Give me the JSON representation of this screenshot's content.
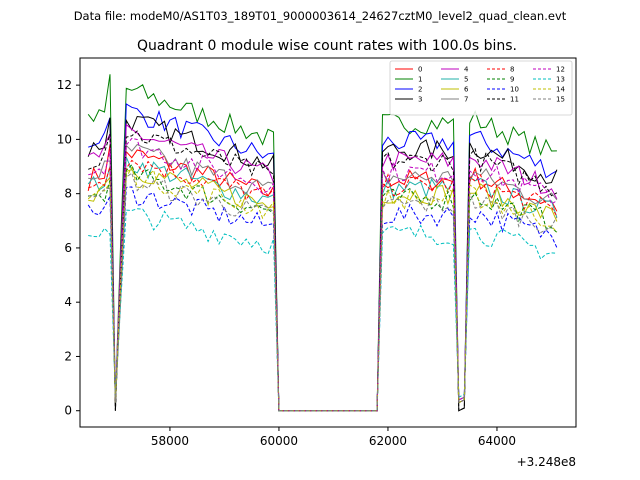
{
  "chart_data": {
    "type": "line",
    "suptitle": "Data file: modeM0/AS1T03_189T01_9000003614_24627cztM0_level2_quad_clean.evt",
    "title": "Quadrant 0 module wise count rates with 100.0s bins.",
    "xlabel": "",
    "ylabel": "",
    "x_offset_label": "+3.248e8",
    "xlim": [
      56350,
      65450
    ],
    "ylim": [
      -0.6,
      13.0
    ],
    "xticks": [
      58000,
      60000,
      62000,
      64000
    ],
    "xtick_labels": [
      "58000",
      "60000",
      "62000",
      "64000"
    ],
    "yticks": [
      0,
      2,
      4,
      6,
      8,
      10,
      12
    ],
    "ytick_labels": [
      "0",
      "2",
      "4",
      "6",
      "8",
      "10",
      "12"
    ],
    "grid": false,
    "legend_position": "top-right",
    "legend_columns": 4,
    "x_segments": [
      {
        "start": 56500,
        "end": 56900,
        "step": 100
      },
      {
        "start": 57000,
        "end": 57000,
        "step": 100
      },
      {
        "start": 57100,
        "end": 57100,
        "step": 100
      },
      {
        "start": 57200,
        "end": 59900,
        "step": 100
      },
      {
        "start": 60000,
        "end": 61800,
        "step": 100
      },
      {
        "start": 61900,
        "end": 63200,
        "step": 100
      },
      {
        "start": 63300,
        "end": 63400,
        "step": 100
      },
      {
        "start": 63500,
        "end": 65100,
        "step": 100
      }
    ],
    "series": [
      {
        "name": "0",
        "color": "#ff0000",
        "dash": "solid",
        "level": 8.5,
        "dip": 0.3,
        "rise": 9.8
      },
      {
        "name": "1",
        "color": "#008000",
        "dash": "solid",
        "level": 10.6,
        "dip": 0.3,
        "rise": 12.4
      },
      {
        "name": "2",
        "color": "#0000ff",
        "dash": "solid",
        "level": 9.9,
        "dip": 0.3,
        "rise": 10.8
      },
      {
        "name": "3",
        "color": "#000000",
        "dash": "solid",
        "level": 9.6,
        "dip": 0.0,
        "rise": 10.8
      },
      {
        "name": "4",
        "color": "#bf00bf",
        "dash": "solid",
        "level": 9.2,
        "dip": 0.4,
        "rise": 10.2
      },
      {
        "name": "5",
        "color": "#20b2aa",
        "dash": "solid",
        "level": 8.2,
        "dip": 0.4,
        "rise": 9.0
      },
      {
        "name": "6",
        "color": "#bfbf00",
        "dash": "solid",
        "level": 8.0,
        "dip": 0.3,
        "rise": 8.6
      },
      {
        "name": "7",
        "color": "#808080",
        "dash": "solid",
        "level": 8.6,
        "dip": 0.4,
        "rise": 9.2
      },
      {
        "name": "8",
        "color": "#ff0000",
        "dash": "dashed",
        "level": 8.3,
        "dip": 0.3,
        "rise": 9.0
      },
      {
        "name": "9",
        "color": "#008000",
        "dash": "dashed",
        "level": 7.8,
        "dip": 0.3,
        "rise": 8.5
      },
      {
        "name": "10",
        "color": "#0000ff",
        "dash": "dashed",
        "level": 7.2,
        "dip": 0.3,
        "rise": 7.9
      },
      {
        "name": "11",
        "color": "#000000",
        "dash": "dashed",
        "level": 9.2,
        "dip": 0.0,
        "rise": 10.2
      },
      {
        "name": "12",
        "color": "#bf00bf",
        "dash": "dashed",
        "level": 8.8,
        "dip": 0.4,
        "rise": 9.6
      },
      {
        "name": "13",
        "color": "#00bfbf",
        "dash": "dashed",
        "level": 6.5,
        "dip": 0.5,
        "rise": 6.5
      },
      {
        "name": "14",
        "color": "#bfbf00",
        "dash": "dashed",
        "level": 7.8,
        "dip": 0.3,
        "rise": 8.4
      },
      {
        "name": "15",
        "color": "#808080",
        "dash": "dashed",
        "level": 7.6,
        "dip": 0.3,
        "rise": 8.2
      }
    ]
  }
}
